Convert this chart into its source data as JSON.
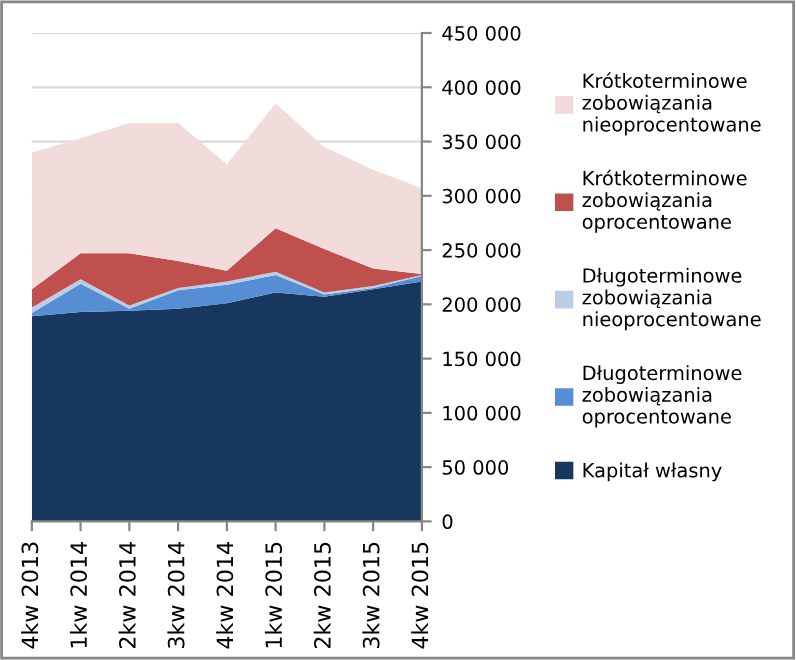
{
  "chart_data": {
    "type": "area",
    "stacked": true,
    "categories": [
      "4kw 2013",
      "1kw 2014",
      "2kw 2014",
      "3kw 2014",
      "4kw 2014",
      "1kw 2015",
      "2kw 2015",
      "3kw 2015",
      "4kw 2015"
    ],
    "series": [
      {
        "name": "Kapitał własny",
        "color": "#17375e",
        "values": [
          189000,
          193000,
          194000,
          196000,
          201000,
          211000,
          207000,
          214000,
          221000
        ]
      },
      {
        "name": "Długoterminowe zobowiązania oprocentowane",
        "color": "#558ed5",
        "values": [
          3000,
          26000,
          2000,
          17000,
          17000,
          16000,
          2000,
          1000,
          5000
        ]
      },
      {
        "name": "Długoterminowe zobowiązania nieoprocentowane",
        "color": "#b9cde5",
        "values": [
          5000,
          4000,
          3000,
          2000,
          3000,
          3000,
          2000,
          2000,
          1000
        ]
      },
      {
        "name": "Krótkoterminowe zobowiązania oprocentowane",
        "color": "#c0504d",
        "values": [
          17000,
          24000,
          48000,
          25000,
          10000,
          40000,
          40000,
          16000,
          1000
        ]
      },
      {
        "name": "Krótkoterminowe zobowiązania nieoprocentowane",
        "color": "#f2dcdb",
        "values": [
          126000,
          106000,
          120000,
          127000,
          98000,
          115000,
          94000,
          91000,
          79000
        ]
      }
    ],
    "ylim": [
      0,
      450000
    ],
    "yticks": [
      {
        "value": 0,
        "label": "0"
      },
      {
        "value": 50000,
        "label": "50 000"
      },
      {
        "value": 100000,
        "label": "100 000"
      },
      {
        "value": 150000,
        "label": "150 000"
      },
      {
        "value": 200000,
        "label": "200 000"
      },
      {
        "value": 250000,
        "label": "250 000"
      },
      {
        "value": 300000,
        "label": "300 000"
      },
      {
        "value": 350000,
        "label": "350 000"
      },
      {
        "value": 400000,
        "label": "400 000"
      },
      {
        "value": 450000,
        "label": "450 000"
      }
    ],
    "grid": "y",
    "legend": "right"
  }
}
